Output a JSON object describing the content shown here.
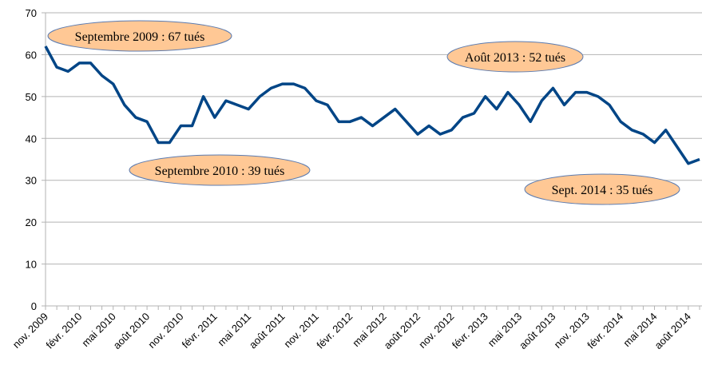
{
  "chart_data": {
    "type": "line",
    "categories": [
      "nov. 2009",
      null,
      null,
      "févr. 2010",
      null,
      null,
      "mai 2010",
      null,
      null,
      "août 2010",
      null,
      null,
      "nov. 2010",
      null,
      null,
      "févr. 2011",
      null,
      null,
      "mai 2011",
      null,
      null,
      "août 2011",
      null,
      null,
      "nov. 2011",
      null,
      null,
      "févr. 2012",
      null,
      null,
      "mai 2012",
      null,
      null,
      "août 2012",
      null,
      null,
      "nov. 2012",
      null,
      null,
      "févr. 2013",
      null,
      null,
      "mai 2013",
      null,
      null,
      "août 2013",
      null,
      null,
      "nov. 2013",
      null,
      null,
      "févr. 2014",
      null,
      null,
      "mai 2014",
      null,
      null,
      "août 2014",
      null
    ],
    "series": [
      {
        "color": "#004586",
        "values": [
          62,
          57,
          56,
          58,
          58,
          55,
          53,
          48,
          45,
          44,
          39,
          39,
          43,
          43,
          50,
          45,
          49,
          48,
          47,
          50,
          52,
          53,
          53,
          52,
          49,
          48,
          44,
          44,
          45,
          43,
          45,
          47,
          44,
          41,
          43,
          41,
          42,
          45,
          46,
          50,
          47,
          51,
          48,
          44,
          49,
          52,
          48,
          51,
          51,
          50,
          48,
          44,
          42,
          41,
          39,
          42,
          38,
          34,
          35
        ]
      }
    ],
    "ylim": [
      0,
      70
    ],
    "yticks": [
      0,
      10,
      20,
      30,
      40,
      50,
      60,
      70
    ],
    "grid": true,
    "annotations": [
      "Septembre 2009 : 67 tués",
      "Septembre 2010 : 39 tués",
      "Août 2013 : 52 tués",
      "Sept. 2014 : 35 tués"
    ]
  }
}
